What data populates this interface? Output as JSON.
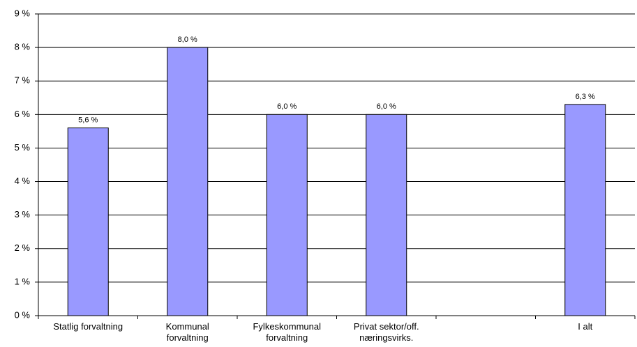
{
  "chart_data": {
    "type": "bar",
    "categories": [
      "Statlig forvaltning",
      "Kommunal forvaltning",
      "Fylkeskommunal forvaltning",
      "Privat sektor/off. næringsvirks.",
      null,
      "I alt"
    ],
    "values": [
      5.6,
      8.0,
      6.0,
      6.0,
      null,
      6.3
    ],
    "value_labels": [
      "5,6 %",
      "8,0 %",
      "6,0 %",
      "6,0 %",
      null,
      "6,3 %"
    ],
    "color": "#9999ff",
    "ylim": [
      0,
      9
    ],
    "yticks": [
      {
        "value": 0,
        "label": "0 %"
      },
      {
        "value": 1,
        "label": "1 %"
      },
      {
        "value": 2,
        "label": "2 %"
      },
      {
        "value": 3,
        "label": "3 %"
      },
      {
        "value": 4,
        "label": "4 %"
      },
      {
        "value": 5,
        "label": "5 %"
      },
      {
        "value": 6,
        "label": "6 %"
      },
      {
        "value": 7,
        "label": "7 %"
      },
      {
        "value": 8,
        "label": "8 %"
      },
      {
        "value": 9,
        "label": "9 %"
      }
    ],
    "grid": true
  }
}
